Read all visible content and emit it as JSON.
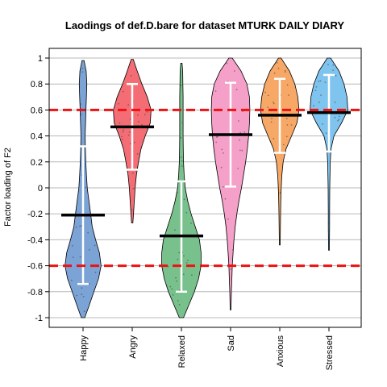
{
  "chart_data": {
    "type": "violin",
    "title": "Laodings of def.D.bare for dataset MTURK DAILY DIARY",
    "xlabel": "",
    "ylabel": "Factor loading of F2",
    "ylim": [
      -1.0,
      1.0
    ],
    "yticks": [
      "1",
      "0.8",
      "0.6",
      "0.4",
      "0.2",
      "0",
      "-0.2",
      "-0.4",
      "-0.6",
      "-0.8",
      "-1"
    ],
    "ytick_values": [
      1,
      0.8,
      0.6,
      0.4,
      0.2,
      0,
      -0.2,
      -0.4,
      -0.6,
      -0.8,
      -1
    ],
    "grid": true,
    "reference_lines": [
      0.6,
      -0.6
    ],
    "reference_line_color": "#ee1111",
    "categories": [
      "Happy",
      "Angry",
      "Relaxed",
      "Sad",
      "Anxious",
      "Stressed"
    ],
    "series": [
      {
        "category": "Happy",
        "color": "#7ba3d6",
        "min": -1.0,
        "max": 0.98,
        "mean": -0.21,
        "ci": [
          -0.74,
          0.32
        ],
        "density": [
          [
            -1.0,
            0.08
          ],
          [
            -0.92,
            0.26
          ],
          [
            -0.8,
            0.52
          ],
          [
            -0.7,
            0.74
          ],
          [
            -0.6,
            0.86
          ],
          [
            -0.5,
            0.78
          ],
          [
            -0.4,
            0.6
          ],
          [
            -0.3,
            0.44
          ],
          [
            -0.2,
            0.36
          ],
          [
            -0.1,
            0.28
          ],
          [
            0.0,
            0.2
          ],
          [
            0.1,
            0.16
          ],
          [
            0.2,
            0.13
          ],
          [
            0.3,
            0.11
          ],
          [
            0.4,
            0.1
          ],
          [
            0.5,
            0.12
          ],
          [
            0.6,
            0.14
          ],
          [
            0.7,
            0.16
          ],
          [
            0.8,
            0.18
          ],
          [
            0.9,
            0.15
          ],
          [
            0.98,
            0.05
          ]
        ]
      },
      {
        "category": "Angry",
        "color": "#f46d75",
        "min": -0.27,
        "max": 0.99,
        "mean": 0.47,
        "ci": [
          0.14,
          0.8
        ],
        "density": [
          [
            -0.27,
            0.03
          ],
          [
            -0.2,
            0.06
          ],
          [
            -0.1,
            0.1
          ],
          [
            0.0,
            0.14
          ],
          [
            0.1,
            0.2
          ],
          [
            0.2,
            0.3
          ],
          [
            0.3,
            0.42
          ],
          [
            0.4,
            0.62
          ],
          [
            0.5,
            0.86
          ],
          [
            0.6,
            0.9
          ],
          [
            0.7,
            0.72
          ],
          [
            0.8,
            0.46
          ],
          [
            0.9,
            0.24
          ],
          [
            0.99,
            0.05
          ]
        ]
      },
      {
        "category": "Relaxed",
        "color": "#78c18c",
        "min": -1.0,
        "max": 0.96,
        "mean": -0.37,
        "ci": [
          -0.8,
          0.05
        ],
        "density": [
          [
            -1.0,
            0.1
          ],
          [
            -0.9,
            0.36
          ],
          [
            -0.8,
            0.62
          ],
          [
            -0.7,
            0.82
          ],
          [
            -0.6,
            0.94
          ],
          [
            -0.5,
            0.94
          ],
          [
            -0.4,
            0.86
          ],
          [
            -0.3,
            0.66
          ],
          [
            -0.2,
            0.46
          ],
          [
            -0.1,
            0.3
          ],
          [
            0.0,
            0.18
          ],
          [
            0.1,
            0.13
          ],
          [
            0.2,
            0.1
          ],
          [
            0.3,
            0.09
          ],
          [
            0.4,
            0.08
          ],
          [
            0.5,
            0.08
          ],
          [
            0.6,
            0.08
          ],
          [
            0.7,
            0.08
          ],
          [
            0.8,
            0.07
          ],
          [
            0.9,
            0.06
          ],
          [
            0.96,
            0.03
          ]
        ]
      },
      {
        "category": "Sad",
        "color": "#f4a0c8",
        "min": -0.94,
        "max": 1.0,
        "mean": 0.41,
        "ci": [
          0.01,
          0.81
        ],
        "density": [
          [
            -0.94,
            0.02
          ],
          [
            -0.8,
            0.04
          ],
          [
            -0.7,
            0.06
          ],
          [
            -0.6,
            0.08
          ],
          [
            -0.5,
            0.12
          ],
          [
            -0.4,
            0.16
          ],
          [
            -0.3,
            0.22
          ],
          [
            -0.2,
            0.3
          ],
          [
            -0.1,
            0.4
          ],
          [
            0.0,
            0.52
          ],
          [
            0.1,
            0.62
          ],
          [
            0.2,
            0.72
          ],
          [
            0.3,
            0.8
          ],
          [
            0.4,
            0.86
          ],
          [
            0.5,
            0.9
          ],
          [
            0.6,
            0.92
          ],
          [
            0.7,
            0.9
          ],
          [
            0.8,
            0.78
          ],
          [
            0.9,
            0.5
          ],
          [
            1.0,
            0.08
          ]
        ]
      },
      {
        "category": "Anxious",
        "color": "#f7a866",
        "min": -0.44,
        "max": 1.0,
        "mean": 0.56,
        "ci": [
          0.27,
          0.84
        ],
        "density": [
          [
            -0.44,
            0.02
          ],
          [
            -0.3,
            0.03
          ],
          [
            -0.2,
            0.04
          ],
          [
            -0.1,
            0.05
          ],
          [
            0.0,
            0.07
          ],
          [
            0.1,
            0.1
          ],
          [
            0.2,
            0.16
          ],
          [
            0.3,
            0.3
          ],
          [
            0.4,
            0.56
          ],
          [
            0.5,
            0.82
          ],
          [
            0.6,
            0.92
          ],
          [
            0.7,
            0.86
          ],
          [
            0.8,
            0.72
          ],
          [
            0.9,
            0.46
          ],
          [
            1.0,
            0.06
          ]
        ]
      },
      {
        "category": "Stressed",
        "color": "#7fc4ef",
        "min": -0.48,
        "max": 1.0,
        "mean": 0.58,
        "ci": [
          0.28,
          0.87
        ],
        "density": [
          [
            -0.48,
            0.02
          ],
          [
            -0.3,
            0.03
          ],
          [
            -0.2,
            0.03
          ],
          [
            0.0,
            0.04
          ],
          [
            0.2,
            0.06
          ],
          [
            0.3,
            0.1
          ],
          [
            0.4,
            0.24
          ],
          [
            0.5,
            0.6
          ],
          [
            0.6,
            0.9
          ],
          [
            0.7,
            0.86
          ],
          [
            0.8,
            0.72
          ],
          [
            0.9,
            0.48
          ],
          [
            1.0,
            0.08
          ]
        ]
      }
    ]
  }
}
